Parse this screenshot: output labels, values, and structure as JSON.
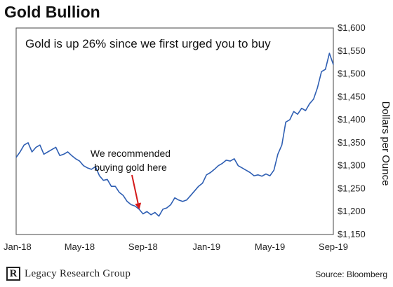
{
  "chart_data": {
    "type": "line",
    "title": "Gold Bullion",
    "headline": "Gold is up 26% since we first urged you to buy",
    "ylabel": "Dollars per Ounce",
    "source": "Source: Bloomberg",
    "brand": "Legacy Research Group",
    "ylim": [
      1150,
      1600
    ],
    "y_ticks": [
      1150,
      1200,
      1250,
      1300,
      1350,
      1400,
      1450,
      1500,
      1550,
      1600
    ],
    "y_tick_labels": [
      "$1,150",
      "$1,200",
      "$1,250",
      "$1,300",
      "$1,350",
      "$1,400",
      "$1,450",
      "$1,500",
      "$1,550",
      "$1,600"
    ],
    "x_tick_labels": [
      "Jan-18",
      "May-18",
      "Sep-18",
      "Jan-19",
      "May-19",
      "Sep-19"
    ],
    "x_ticks": [
      0,
      4,
      8,
      12,
      16,
      20
    ],
    "grid": false,
    "annotation": {
      "lines": [
        "We recommended",
        "buying gold here"
      ],
      "x": 7.8,
      "y": 1200
    },
    "series": [
      {
        "color": "#2f5fb3",
        "x": [
          0,
          0.25,
          0.5,
          0.75,
          1,
          1.25,
          1.5,
          1.75,
          2,
          2.25,
          2.5,
          2.75,
          3,
          3.25,
          3.5,
          3.75,
          4,
          4.25,
          4.5,
          4.75,
          5,
          5.25,
          5.5,
          5.75,
          6,
          6.25,
          6.5,
          6.75,
          7,
          7.25,
          7.5,
          7.75,
          8,
          8.25,
          8.5,
          8.75,
          9,
          9.25,
          9.5,
          9.75,
          10,
          10.25,
          10.5,
          10.75,
          11,
          11.25,
          11.5,
          11.75,
          12,
          12.25,
          12.5,
          12.75,
          13,
          13.25,
          13.5,
          13.75,
          14,
          14.25,
          14.5,
          14.75,
          15,
          15.25,
          15.5,
          15.75,
          16,
          16.25,
          16.5,
          16.75,
          17,
          17.25,
          17.5,
          17.75,
          18,
          18.25,
          18.5,
          18.75,
          19,
          19.25,
          19.5,
          19.75,
          20
        ],
        "values": [
          1318,
          1330,
          1345,
          1350,
          1330,
          1340,
          1345,
          1325,
          1330,
          1335,
          1340,
          1322,
          1325,
          1330,
          1322,
          1315,
          1310,
          1300,
          1295,
          1292,
          1298,
          1278,
          1268,
          1270,
          1255,
          1255,
          1242,
          1235,
          1222,
          1215,
          1212,
          1205,
          1195,
          1200,
          1193,
          1198,
          1190,
          1205,
          1208,
          1215,
          1230,
          1225,
          1222,
          1225,
          1235,
          1245,
          1255,
          1262,
          1280,
          1285,
          1292,
          1300,
          1305,
          1312,
          1310,
          1315,
          1300,
          1295,
          1290,
          1285,
          1278,
          1280,
          1277,
          1282,
          1278,
          1290,
          1325,
          1345,
          1395,
          1400,
          1418,
          1412,
          1425,
          1420,
          1435,
          1445,
          1470,
          1505,
          1510,
          1545,
          1520
        ]
      }
    ]
  }
}
